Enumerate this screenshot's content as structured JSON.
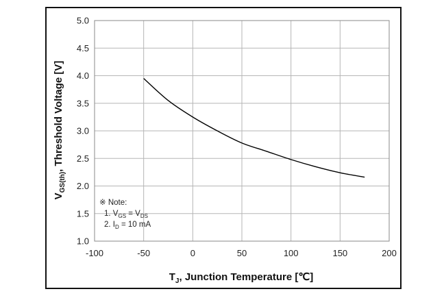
{
  "chart_data": {
    "type": "line",
    "x_axis": {
      "ticks": [
        -100,
        -50,
        0,
        50,
        100,
        150,
        200
      ],
      "tick_labels": [
        "-100",
        "-50",
        "0",
        "50",
        "100",
        "150",
        "200"
      ],
      "range": [
        -100,
        200
      ],
      "label_main": "T",
      "label_sub": "J",
      "label_rest": ", Junction Temperature [℃]"
    },
    "y_axis": {
      "ticks": [
        1.0,
        1.5,
        2.0,
        2.5,
        3.0,
        3.5,
        4.0,
        4.5,
        5.0
      ],
      "tick_labels": [
        "1.0",
        "1.5",
        "2.0",
        "2.5",
        "3.0",
        "3.5",
        "4.0",
        "4.5",
        "5.0"
      ],
      "range": [
        1.0,
        5.0
      ],
      "label_main": "V",
      "label_sub": "GS(th)",
      "label_rest": ", Threshold Voltage [V]"
    },
    "grid": true,
    "series": [
      {
        "color": "#000000",
        "x": [
          -50,
          -25,
          0,
          25,
          50,
          75,
          100,
          125,
          150,
          175
        ],
        "y": [
          3.95,
          3.55,
          3.25,
          3.0,
          2.78,
          2.63,
          2.48,
          2.35,
          2.24,
          2.16
        ]
      }
    ],
    "note": {
      "header": "※ Note:",
      "line1": {
        "prefix": "1. V",
        "sub1": "GS",
        "mid": " = V",
        "sub2": "DS"
      },
      "line2": {
        "prefix": "2. I",
        "sub1": "D",
        "rest": " = 10 mA"
      }
    }
  }
}
